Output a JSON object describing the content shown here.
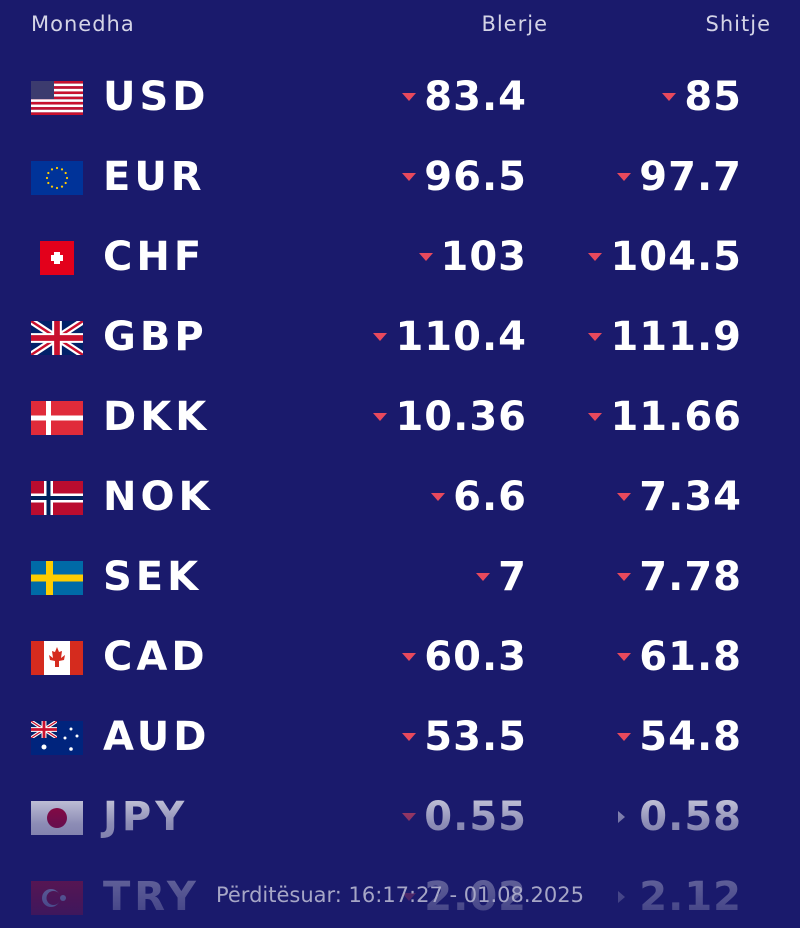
{
  "header": {
    "currency": "Monedha",
    "buy": "Blerje",
    "sell": "Shitje"
  },
  "rows": [
    {
      "code": "USD",
      "buy": "83.4",
      "buy_trend": "down",
      "sell": "85",
      "sell_trend": "down"
    },
    {
      "code": "EUR",
      "buy": "96.5",
      "buy_trend": "down",
      "sell": "97.7",
      "sell_trend": "down"
    },
    {
      "code": "CHF",
      "buy": "103",
      "buy_trend": "down",
      "sell": "104.5",
      "sell_trend": "down"
    },
    {
      "code": "GBP",
      "buy": "110.4",
      "buy_trend": "down",
      "sell": "111.9",
      "sell_trend": "down"
    },
    {
      "code": "DKK",
      "buy": "10.36",
      "buy_trend": "down",
      "sell": "11.66",
      "sell_trend": "down"
    },
    {
      "code": "NOK",
      "buy": "6.6",
      "buy_trend": "down",
      "sell": "7.34",
      "sell_trend": "down"
    },
    {
      "code": "SEK",
      "buy": "7",
      "buy_trend": "down",
      "sell": "7.78",
      "sell_trend": "down"
    },
    {
      "code": "CAD",
      "buy": "60.3",
      "buy_trend": "down",
      "sell": "61.8",
      "sell_trend": "down"
    },
    {
      "code": "AUD",
      "buy": "53.5",
      "buy_trend": "down",
      "sell": "54.8",
      "sell_trend": "down"
    },
    {
      "code": "JPY",
      "buy": "0.55",
      "buy_trend": "down",
      "sell": "0.58",
      "sell_trend": "flat"
    },
    {
      "code": "TRY",
      "buy": "2.02",
      "buy_trend": "down",
      "sell": "2.12",
      "sell_trend": "flat"
    }
  ],
  "footer": "Përditësuar: 16:17:27 - 01.08.2025"
}
